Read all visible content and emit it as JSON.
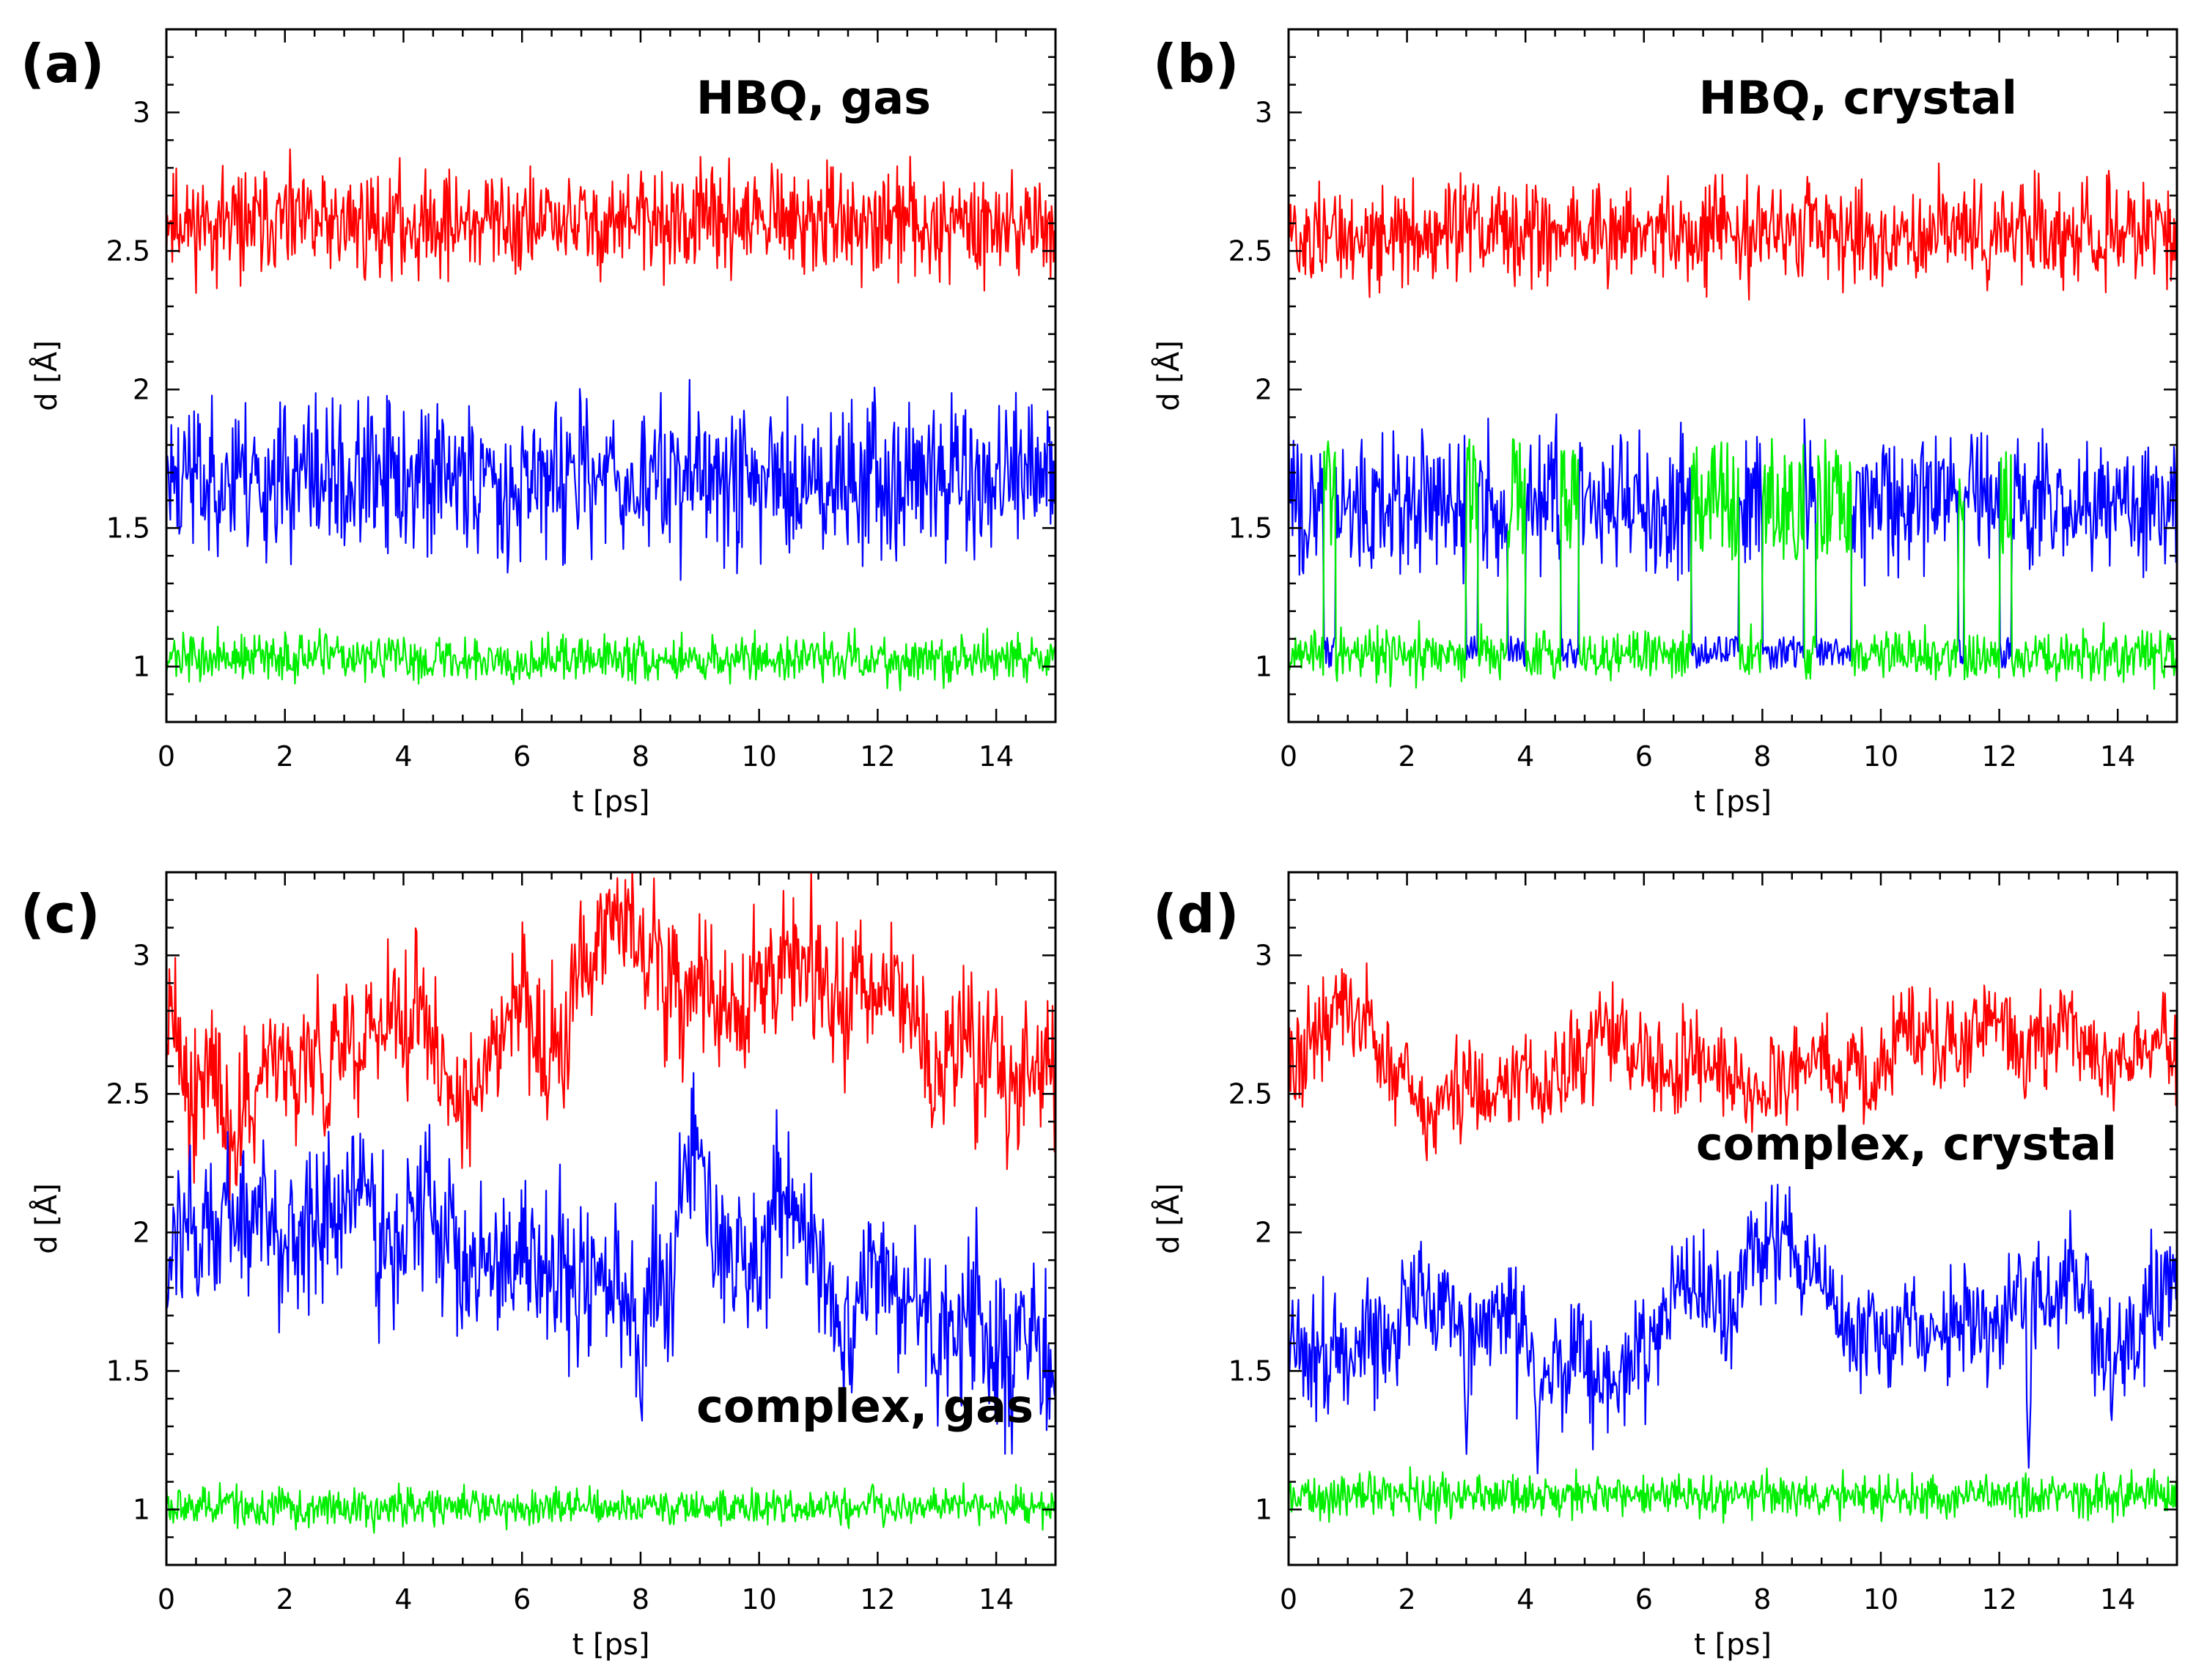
{
  "colors": {
    "d1": "#ff0000",
    "d2": "#0000ff",
    "d3": "#00ee00"
  },
  "chart_data": [
    {
      "type": "line",
      "panel_label": "(a)",
      "title": "HBQ, gas",
      "xlabel": "t [ps]",
      "ylabel": "d [Å]",
      "xlim": [
        0,
        15
      ],
      "ylim": [
        0.8,
        3.3
      ],
      "xticks": [
        "0",
        "2",
        "4",
        "6",
        "8",
        "10",
        "12",
        "14"
      ],
      "yticks": [
        "1",
        "1.5",
        "2",
        "2.5",
        "3"
      ],
      "series": [
        {
          "name": "red",
          "color": "#ff0000",
          "mean": 2.6,
          "noise": 0.17,
          "drift": 0.0,
          "seed": 11
        },
        {
          "name": "blue",
          "color": "#0000ff",
          "mean": 1.68,
          "noise": 0.25,
          "drift": 0.0,
          "seed": 23
        },
        {
          "name": "green",
          "color": "#00ee00",
          "mean": 1.03,
          "noise": 0.075,
          "drift": 0.0,
          "seed": 37
        }
      ]
    },
    {
      "type": "line",
      "panel_label": "(b)",
      "title": "HBQ, crystal",
      "xlabel": "t [ps]",
      "ylabel": "d [Å]",
      "xlim": [
        0,
        15
      ],
      "ylim": [
        0.8,
        3.3
      ],
      "xticks": [
        "0",
        "2",
        "4",
        "6",
        "8",
        "10",
        "12",
        "14"
      ],
      "yticks": [
        "1",
        "1.5",
        "2",
        "2.5",
        "3"
      ],
      "series": [
        {
          "name": "red",
          "color": "#ff0000",
          "mean": 2.56,
          "noise": 0.16,
          "drift": 0.0,
          "seed": 51
        },
        {
          "name": "blue",
          "color": "#0000ff",
          "mean": 1.6,
          "noise": 0.22,
          "drift": 0.0,
          "seed": 63
        },
        {
          "name": "green",
          "color": "#00ee00",
          "mean": 1.04,
          "noise": 0.08,
          "drift": 0.0,
          "seed": 77
        }
      ],
      "proton_transfer_intervals": [
        [
          0.6,
          0.8
        ],
        [
          3.0,
          3.2
        ],
        [
          3.7,
          4.0
        ],
        [
          4.6,
          4.9
        ],
        [
          6.8,
          7.6
        ],
        [
          8.0,
          8.7
        ],
        [
          8.9,
          9.5
        ],
        [
          11.3,
          11.4
        ],
        [
          12.0,
          12.2
        ]
      ]
    },
    {
      "type": "line",
      "panel_label": "(c)",
      "title": "complex, gas",
      "xlabel": "t [ps]",
      "ylabel": "d [Å]",
      "xlim": [
        0,
        15
      ],
      "ylim": [
        0.8,
        3.3
      ],
      "xticks": [
        "0",
        "2",
        "4",
        "6",
        "8",
        "10",
        "12",
        "14"
      ],
      "yticks": [
        "1",
        "1.5",
        "2",
        "2.5",
        "3"
      ],
      "series": [
        {
          "name": "red",
          "color": "#ff0000",
          "mean": 2.82,
          "noise": 0.22,
          "drift": 0.18,
          "seed": 91
        },
        {
          "name": "blue",
          "color": "#0000ff",
          "mean": 1.85,
          "noise": 0.24,
          "drift": 0.2,
          "seed": 103
        },
        {
          "name": "green",
          "color": "#00ee00",
          "mean": 1.01,
          "noise": 0.06,
          "drift": 0.0,
          "seed": 117
        }
      ]
    },
    {
      "type": "line",
      "panel_label": "(d)",
      "title": "complex, crystal",
      "xlabel": "t [ps]",
      "ylabel": "d [Å]",
      "xlim": [
        0,
        15
      ],
      "ylim": [
        0.8,
        3.3
      ],
      "xticks": [
        "0",
        "2",
        "4",
        "6",
        "8",
        "10",
        "12",
        "14"
      ],
      "yticks": [
        "1",
        "1.5",
        "2",
        "2.5",
        "3"
      ],
      "series": [
        {
          "name": "red",
          "color": "#ff0000",
          "mean": 2.65,
          "noise": 0.15,
          "drift": 0.1,
          "seed": 131
        },
        {
          "name": "blue",
          "color": "#0000ff",
          "mean": 1.65,
          "noise": 0.18,
          "drift": 0.12,
          "seed": 149
        },
        {
          "name": "green",
          "color": "#00ee00",
          "mean": 1.05,
          "noise": 0.07,
          "drift": 0.0,
          "seed": 163
        }
      ],
      "spikes": [
        {
          "t": 3.0,
          "series": "blue",
          "to": 1.2
        },
        {
          "t": 4.2,
          "series": "blue",
          "to": 1.13
        },
        {
          "t": 12.5,
          "series": "blue",
          "to": 1.15
        }
      ]
    }
  ]
}
